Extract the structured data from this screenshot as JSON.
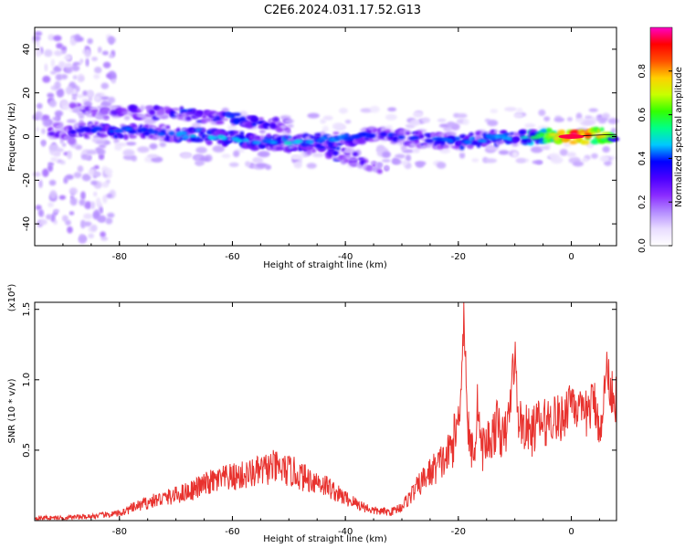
{
  "title": "C2E6.2024.031.17.52.G13",
  "colorbar": {
    "label": "Normalized spectral amplitude",
    "ticks": [
      "0.0",
      "0.2",
      "0.4",
      "0.6",
      "0.8"
    ],
    "tick_values": [
      0.0,
      0.2,
      0.4,
      0.6,
      0.8
    ],
    "range": [
      0.0,
      1.0
    ],
    "colors": [
      "#ffffff",
      "#e9ddff",
      "#b48cff",
      "#8a2bff",
      "#4b00ff",
      "#0000ff",
      "#00c8ff",
      "#00ff88",
      "#33ff00",
      "#c8ff00",
      "#ffd000",
      "#ff5000",
      "#ff0000",
      "#ff00c8"
    ]
  },
  "chart_data": [
    {
      "type": "heatmap",
      "xlabel": "Height of straight line (km)",
      "ylabel": "Frequency (Hz)",
      "xlim": [
        -95,
        8
      ],
      "ylim": [
        -50,
        50
      ],
      "xticks": [
        -80,
        -60,
        -40,
        -20,
        0
      ],
      "xtick_labels": [
        "-80",
        "-60",
        "-40",
        "-20",
        "0"
      ],
      "yticks": [
        -40,
        -20,
        0,
        20,
        40
      ],
      "ytick_labels": [
        "-40",
        "-20",
        "0",
        "20",
        "40"
      ],
      "ridge": {
        "x": [
          -92,
          -85,
          -80,
          -75,
          -70,
          -65,
          -60,
          -55,
          -50,
          -45,
          -40,
          -35,
          -30,
          -25,
          -20,
          -15,
          -10,
          -5,
          0,
          5,
          8
        ],
        "y": [
          2,
          3,
          3,
          2,
          1,
          0,
          -1,
          -2,
          -3,
          -2,
          -1,
          1,
          0,
          -2,
          -2,
          -1,
          0,
          0,
          0,
          0.5,
          1
        ],
        "amplitude": [
          0.3,
          0.35,
          0.4,
          0.35,
          0.4,
          0.45,
          0.45,
          0.4,
          0.45,
          0.4,
          0.4,
          0.35,
          0.35,
          0.35,
          0.4,
          0.4,
          0.45,
          0.55,
          0.95,
          0.8,
          0.5
        ]
      },
      "upper_band": {
        "x": [
          -88,
          -82,
          -76,
          -70,
          -65,
          -60,
          -55,
          -50
        ],
        "y": [
          12,
          11,
          11,
          11,
          9,
          8,
          6,
          5
        ],
        "amplitude": [
          0.3,
          0.3,
          0.35,
          0.4,
          0.4,
          0.45,
          0.4,
          0.3
        ]
      },
      "lower_band": {
        "x": [
          -58,
          -50,
          -44,
          -40,
          -36,
          -33
        ],
        "y": [
          -2,
          -4,
          -6,
          -9,
          -12,
          -14
        ],
        "amplitude": [
          0.3,
          0.35,
          0.4,
          0.4,
          0.3,
          0.2
        ]
      }
    },
    {
      "type": "line",
      "xlabel": "Height of straight line (km)",
      "ylabel": "SNR (10 * v/v)",
      "y_multiplier": "(x10⁴)",
      "xlim": [
        -95,
        8
      ],
      "ylim": [
        0,
        1.55
      ],
      "xticks": [
        -80,
        -60,
        -40,
        -20,
        0
      ],
      "xtick_labels": [
        "-80",
        "-60",
        "-40",
        "-20",
        "0"
      ],
      "yticks": [
        0.5,
        1.0,
        1.5
      ],
      "ytick_labels": [
        "0.5",
        "1.0",
        "1.5"
      ],
      "color": "#e8322e",
      "series": [
        {
          "x": [
            -95,
            -90,
            -85,
            -80,
            -77,
            -74,
            -70,
            -67,
            -64,
            -61,
            -58,
            -55,
            -53,
            -51,
            -49,
            -47,
            -45,
            -43,
            -41,
            -38,
            -35,
            -32,
            -30,
            -28,
            -26,
            -24,
            -22,
            -21,
            -20,
            -19.5,
            -19,
            -18.5,
            -18,
            -17,
            -16.5,
            -16,
            -15,
            -14,
            -13,
            -12,
            -11,
            -10.5,
            -10,
            -9.5,
            -9,
            -8,
            -7,
            -6,
            -5,
            -4,
            -3,
            -2,
            -1,
            0,
            1,
            2,
            3,
            4,
            5,
            5.5,
            6,
            7,
            8
          ],
          "y": [
            0.02,
            0.02,
            0.03,
            0.05,
            0.1,
            0.14,
            0.18,
            0.22,
            0.27,
            0.3,
            0.32,
            0.35,
            0.38,
            0.36,
            0.34,
            0.3,
            0.28,
            0.24,
            0.18,
            0.12,
            0.07,
            0.06,
            0.1,
            0.2,
            0.3,
            0.38,
            0.45,
            0.55,
            0.7,
            1.0,
            1.5,
            0.85,
            0.5,
            0.55,
            0.9,
            0.5,
            0.55,
            0.6,
            0.7,
            0.55,
            0.75,
            1.0,
            1.2,
            0.75,
            0.7,
            0.65,
            0.62,
            0.7,
            0.68,
            0.72,
            0.75,
            0.7,
            0.78,
            0.9,
            0.8,
            0.72,
            0.78,
            0.85,
            0.7,
            0.6,
            1.1,
            0.95,
            0.85
          ]
        }
      ]
    }
  ]
}
